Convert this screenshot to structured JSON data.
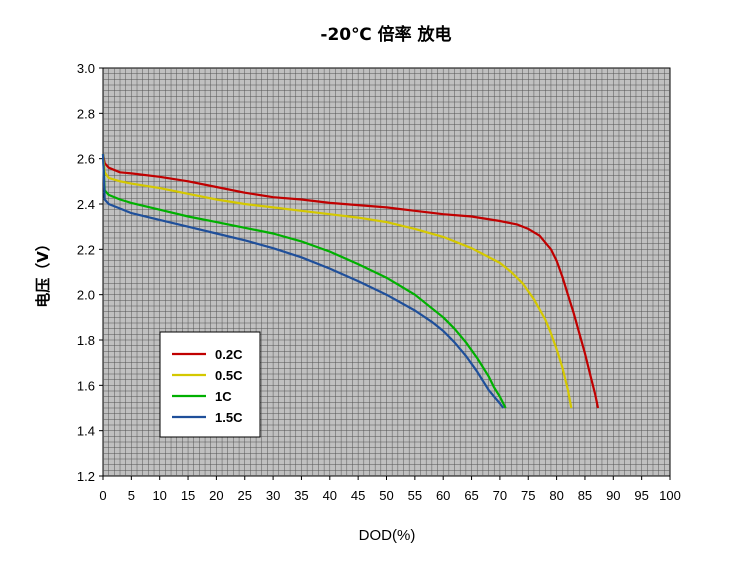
{
  "chart_data": {
    "type": "line",
    "title": "-20℃ 倍率 放电",
    "xlabel": "DOD(%)",
    "ylabel": "电压（V）",
    "xlim": [
      0,
      100
    ],
    "ylim": [
      1.2,
      3.0
    ],
    "x_ticks": [
      "0",
      "5",
      "10",
      "15",
      "20",
      "25",
      "30",
      "35",
      "40",
      "45",
      "50",
      "55",
      "60",
      "65",
      "70",
      "75",
      "80",
      "85",
      "90",
      "95",
      "100"
    ],
    "y_ticks": [
      "1.2",
      "1.4",
      "1.6",
      "1.8",
      "2.0",
      "2.2",
      "2.4",
      "2.6",
      "2.8",
      "3.0"
    ],
    "grid": true,
    "legend_position": "bottom-left",
    "background": "#c0c0c0",
    "grid_color": "#555555",
    "series": [
      {
        "name": "0.2C",
        "color": "#c00000",
        "points": [
          [
            0,
            2.62
          ],
          [
            0.3,
            2.58
          ],
          [
            1,
            2.56
          ],
          [
            3,
            2.54
          ],
          [
            5,
            2.535
          ],
          [
            10,
            2.52
          ],
          [
            15,
            2.5
          ],
          [
            20,
            2.475
          ],
          [
            25,
            2.45
          ],
          [
            30,
            2.43
          ],
          [
            35,
            2.42
          ],
          [
            40,
            2.405
          ],
          [
            45,
            2.395
          ],
          [
            50,
            2.385
          ],
          [
            55,
            2.37
          ],
          [
            60,
            2.355
          ],
          [
            65,
            2.345
          ],
          [
            70,
            2.325
          ],
          [
            73,
            2.31
          ],
          [
            75,
            2.29
          ],
          [
            77,
            2.26
          ],
          [
            79,
            2.2
          ],
          [
            80,
            2.15
          ],
          [
            81,
            2.08
          ],
          [
            82,
            2.0
          ],
          [
            83,
            1.92
          ],
          [
            84,
            1.83
          ],
          [
            85,
            1.74
          ],
          [
            86,
            1.64
          ],
          [
            86.8,
            1.56
          ],
          [
            87.3,
            1.5
          ]
        ]
      },
      {
        "name": "0.5C",
        "color": "#d4c800",
        "points": [
          [
            0,
            2.62
          ],
          [
            0.3,
            2.54
          ],
          [
            1,
            2.515
          ],
          [
            3,
            2.5
          ],
          [
            5,
            2.49
          ],
          [
            10,
            2.47
          ],
          [
            15,
            2.445
          ],
          [
            20,
            2.42
          ],
          [
            25,
            2.4
          ],
          [
            30,
            2.385
          ],
          [
            35,
            2.37
          ],
          [
            40,
            2.355
          ],
          [
            45,
            2.34
          ],
          [
            50,
            2.32
          ],
          [
            55,
            2.29
          ],
          [
            60,
            2.255
          ],
          [
            65,
            2.205
          ],
          [
            70,
            2.14
          ],
          [
            72,
            2.1
          ],
          [
            74,
            2.05
          ],
          [
            76,
            1.98
          ],
          [
            78,
            1.89
          ],
          [
            79,
            1.83
          ],
          [
            80,
            1.76
          ],
          [
            81,
            1.68
          ],
          [
            82,
            1.58
          ],
          [
            82.6,
            1.5
          ]
        ]
      },
      {
        "name": "1C",
        "color": "#00b000",
        "points": [
          [
            0,
            2.62
          ],
          [
            0.3,
            2.46
          ],
          [
            1,
            2.44
          ],
          [
            3,
            2.42
          ],
          [
            5,
            2.405
          ],
          [
            10,
            2.375
          ],
          [
            15,
            2.345
          ],
          [
            20,
            2.32
          ],
          [
            25,
            2.295
          ],
          [
            30,
            2.27
          ],
          [
            35,
            2.235
          ],
          [
            40,
            2.19
          ],
          [
            45,
            2.135
          ],
          [
            50,
            2.075
          ],
          [
            55,
            2.0
          ],
          [
            58,
            1.94
          ],
          [
            60,
            1.9
          ],
          [
            62,
            1.85
          ],
          [
            64,
            1.79
          ],
          [
            66,
            1.72
          ],
          [
            67,
            1.68
          ],
          [
            68,
            1.64
          ],
          [
            69,
            1.59
          ],
          [
            70,
            1.55
          ],
          [
            71,
            1.5
          ]
        ]
      },
      {
        "name": "1.5C",
        "color": "#1f4f9a",
        "points": [
          [
            0,
            2.62
          ],
          [
            0.3,
            2.42
          ],
          [
            1,
            2.4
          ],
          [
            3,
            2.38
          ],
          [
            5,
            2.36
          ],
          [
            10,
            2.33
          ],
          [
            15,
            2.3
          ],
          [
            20,
            2.27
          ],
          [
            25,
            2.24
          ],
          [
            30,
            2.205
          ],
          [
            35,
            2.165
          ],
          [
            40,
            2.115
          ],
          [
            45,
            2.06
          ],
          [
            50,
            2.0
          ],
          [
            55,
            1.93
          ],
          [
            58,
            1.88
          ],
          [
            60,
            1.84
          ],
          [
            62,
            1.79
          ],
          [
            64,
            1.73
          ],
          [
            66,
            1.66
          ],
          [
            67,
            1.62
          ],
          [
            68,
            1.58
          ],
          [
            69,
            1.55
          ],
          [
            70,
            1.52
          ],
          [
            70.6,
            1.5
          ]
        ]
      }
    ]
  }
}
